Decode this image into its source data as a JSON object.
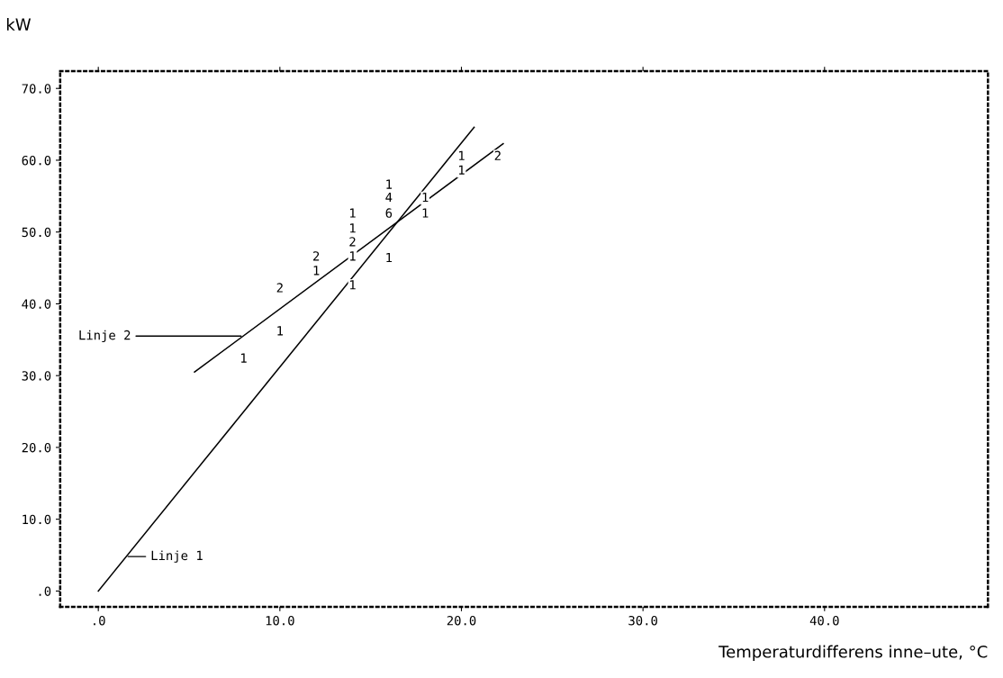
{
  "chart_data": {
    "type": "line",
    "xlabel": "Temperaturdifferens inne–ute, °C",
    "ylabel": "kW",
    "xlim": [
      -2.1,
      49
    ],
    "ylim": [
      -2.2,
      72.4
    ],
    "xticks": [
      {
        "value": 0,
        "label": ".0"
      },
      {
        "value": 10,
        "label": "10.0"
      },
      {
        "value": 20,
        "label": "20.0"
      },
      {
        "value": 30,
        "label": "30.0"
      },
      {
        "value": 40,
        "label": "40.0"
      }
    ],
    "yticks": [
      {
        "value": 0,
        "label": ".0"
      },
      {
        "value": 10,
        "label": "10.0"
      },
      {
        "value": 20,
        "label": "20.0"
      },
      {
        "value": 30,
        "label": "30.0"
      },
      {
        "value": 40,
        "label": "40.0"
      },
      {
        "value": 50,
        "label": "50.0"
      },
      {
        "value": 60,
        "label": "60.0"
      },
      {
        "value": 70,
        "label": "70.0"
      }
    ],
    "grid": false,
    "legend": false,
    "marker": "none",
    "series": [
      {
        "color": "#000000",
        "x": [
          0,
          20.7
        ],
        "values": [
          0,
          64.6
        ]
      },
      {
        "color": "#000000",
        "x": [
          5.3,
          22.3
        ],
        "values": [
          30.5,
          62.3
        ]
      }
    ],
    "annotations": [
      {
        "text": "Linje 2",
        "x": 8.0,
        "y": 35.5
      },
      {
        "text": "Linje 1",
        "x": 1.5,
        "y": 4.8
      },
      {
        "text": "1",
        "x": 8,
        "y": 32.3
      },
      {
        "text": "1",
        "x": 10,
        "y": 36.1
      },
      {
        "text": "2",
        "x": 10,
        "y": 42.1
      },
      {
        "text": "1",
        "x": 12,
        "y": 44.5
      },
      {
        "text": "2",
        "x": 12,
        "y": 46.5
      },
      {
        "text": "1",
        "x": 14,
        "y": 42.5
      },
      {
        "text": "1",
        "x": 14,
        "y": 46.5
      },
      {
        "text": "2",
        "x": 14,
        "y": 48.5
      },
      {
        "text": "1",
        "x": 14,
        "y": 50.4
      },
      {
        "text": "1",
        "x": 14,
        "y": 52.5
      },
      {
        "text": "1",
        "x": 16,
        "y": 46.3
      },
      {
        "text": "6",
        "x": 16,
        "y": 52.5
      },
      {
        "text": "4",
        "x": 16,
        "y": 54.7
      },
      {
        "text": "1",
        "x": 16,
        "y": 56.5
      },
      {
        "text": "1",
        "x": 18,
        "y": 52.5
      },
      {
        "text": "1",
        "x": 18,
        "y": 54.7
      },
      {
        "text": "1",
        "x": 20,
        "y": 58.5
      },
      {
        "text": "1",
        "x": 20,
        "y": 60.5
      },
      {
        "text": "2",
        "x": 22,
        "y": 60.5
      }
    ]
  }
}
